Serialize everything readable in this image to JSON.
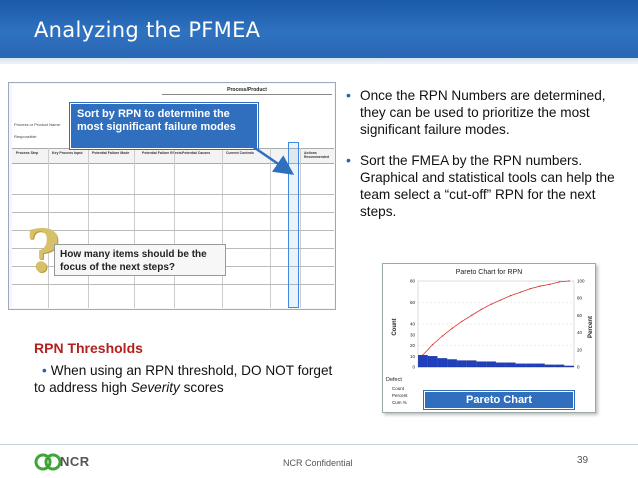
{
  "slide": {
    "title": "Analyzing the PFMEA",
    "page_number": "39",
    "footer_text": "NCR Confidential",
    "logo_text": "NCR"
  },
  "fmea_form": {
    "header": "Process/Product",
    "columns": [
      "Process Step",
      "Key Process Input",
      "Potential Failure Mode",
      "Potential Failure Effects",
      "S E V",
      "Potential Causes",
      "O C C",
      "Current Controls",
      "D E T",
      "R P N",
      "Actions Recommended"
    ],
    "form_lines": [
      "Process or Product Name:",
      "Responsible:"
    ]
  },
  "callouts": {
    "sort": "Sort by RPN to determine the most significant failure modes",
    "how_many": "How many items should be the focus of the next steps?"
  },
  "bullets": [
    "Once the RPN Numbers are determined, they can be used to prioritize the most significant failure modes.",
    "Sort the FMEA by the RPN numbers. Graphical and statistical tools can help the team select a “cut-off” RPN for the next steps."
  ],
  "thresholds": {
    "title": "RPN Thresholds",
    "text_before": "When using an RPN threshold, DO NOT forget to address high ",
    "text_emph": "Severity",
    "text_after": " scores"
  },
  "pareto": {
    "label": "Pareto Chart",
    "chart_title": "Pareto Chart for RPN",
    "left_axis_label": "Count",
    "right_axis_label": "Percent",
    "left_ticks": [
      "80",
      "60",
      "40",
      "30",
      "20",
      "10",
      "0"
    ],
    "right_ticks": [
      "100",
      "80",
      "60",
      "40",
      "20",
      "0"
    ],
    "row_labels": [
      "Defect",
      "Count",
      "Percent",
      "Cum %"
    ]
  },
  "colors": {
    "header_blue": "#2a67b4",
    "callout_blue": "#2f6fbe",
    "threshold_red": "#b32020",
    "bar_blue": "#1f3fbf",
    "cum_line_red": "#e03030"
  },
  "chart_data": {
    "type": "bar",
    "title": "Pareto Chart for RPN",
    "ylabel": "Count",
    "y2label": "Percent",
    "ylim": [
      0,
      80
    ],
    "y2lim": [
      0,
      100
    ],
    "series": [
      {
        "name": "Count",
        "values": [
          11,
          10,
          8,
          7,
          6,
          6,
          5,
          5,
          4,
          4,
          3,
          3,
          3,
          2,
          2,
          1
        ]
      },
      {
        "name": "Cum %",
        "values": [
          14,
          26,
          36,
          45,
          53,
          60,
          67,
          73,
          78,
          83,
          87,
          91,
          94,
          96,
          99,
          100
        ]
      }
    ]
  }
}
